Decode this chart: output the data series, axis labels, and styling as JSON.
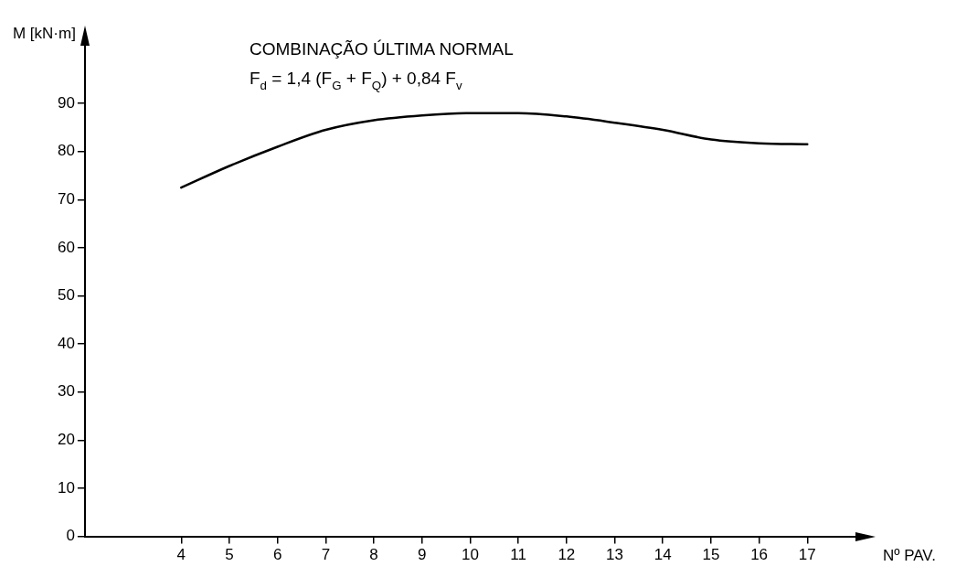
{
  "chart_data": {
    "type": "line",
    "title": "COMBINAÇÃO ÚLTIMA NORMAL",
    "subtitle": "F$_{d}$ = 1,4 (F$_{G}$ + F$_{Q}$) + 0,84 F$_{v}$",
    "xlabel": "Nº PAV.",
    "ylabel": "M [kN·m]",
    "x": [
      4,
      5,
      6,
      7,
      8,
      9,
      10,
      11,
      12,
      13,
      14,
      15,
      16,
      17
    ],
    "series": [
      {
        "color": "#000000",
        "values": [
          72.5,
          77,
          81,
          84.5,
          86.5,
          87.5,
          88,
          88,
          87.3,
          86,
          84.5,
          82.5,
          81.7,
          81.5
        ]
      }
    ],
    "xlim": [
      2,
      18
    ],
    "xticks": [
      4,
      5,
      6,
      7,
      8,
      9,
      10,
      11,
      12,
      13,
      14,
      15,
      16,
      17
    ],
    "ylim": [
      0,
      102
    ],
    "yticks": [
      0,
      10,
      20,
      30,
      40,
      50,
      60,
      70,
      80,
      90
    ],
    "grid": false,
    "legend": false,
    "marker": "none",
    "line_style": "solid"
  }
}
